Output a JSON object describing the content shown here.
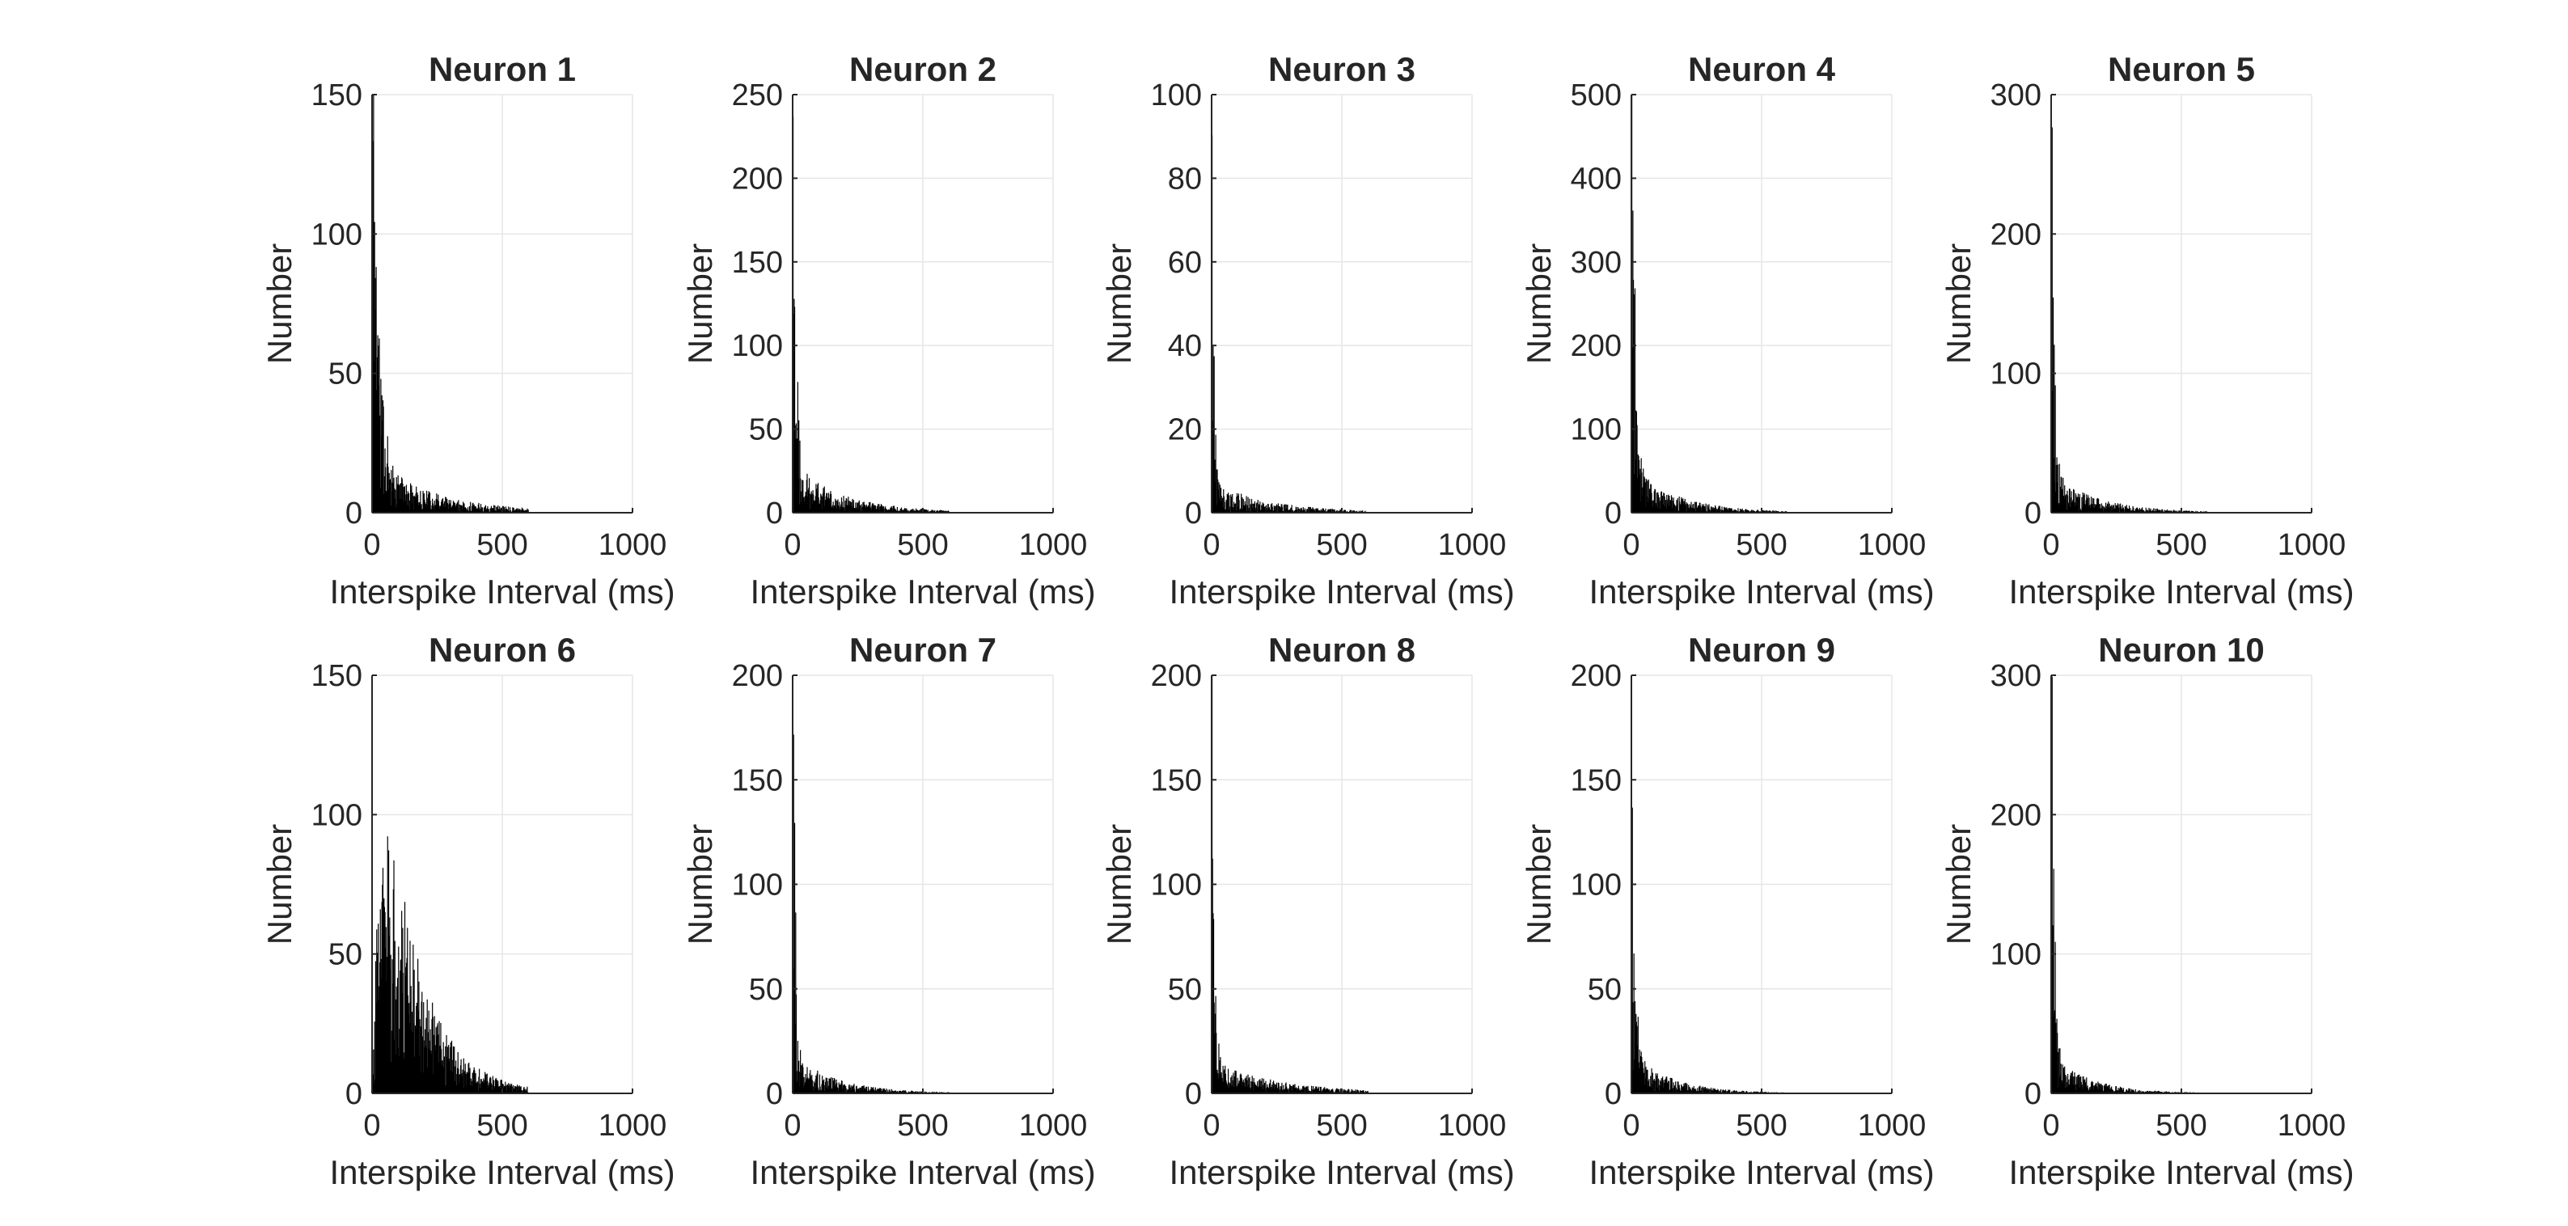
{
  "figure": {
    "background": "#ffffff",
    "bar_color": "#000000",
    "grid_color": "#e6e6e6",
    "axis_color": "#262626"
  },
  "chart_data": [
    {
      "type": "bar",
      "title": "Neuron 1",
      "xlabel": "Interspike Interval (ms)",
      "ylabel": "Number",
      "xlim": [
        0,
        1000
      ],
      "ylim": [
        0,
        150
      ],
      "xticks": [
        0,
        500,
        1000
      ],
      "yticks": [
        0,
        50,
        100,
        150
      ],
      "grid": true,
      "bin_width": 2,
      "x_extent": 600,
      "shape": {
        "peak": 123,
        "decay": 22,
        "tail": 12,
        "tail_decay": 250,
        "rise": 0,
        "noise": 0.55,
        "seed": 11
      }
    },
    {
      "type": "bar",
      "title": "Neuron 2",
      "xlabel": "Interspike Interval (ms)",
      "ylabel": "Number",
      "xlim": [
        0,
        1000
      ],
      "ylim": [
        0,
        250
      ],
      "xticks": [
        0,
        500,
        1000
      ],
      "yticks": [
        0,
        50,
        100,
        150,
        200,
        250
      ],
      "grid": true,
      "bin_width": 2,
      "x_extent": 600,
      "shape": {
        "peak": 205,
        "decay": 12,
        "tail": 18,
        "tail_decay": 200,
        "rise": 0,
        "noise": 0.6,
        "seed": 22
      }
    },
    {
      "type": "bar",
      "title": "Neuron 3",
      "xlabel": "Interspike Interval (ms)",
      "ylabel": "Number",
      "xlim": [
        0,
        1000
      ],
      "ylim": [
        0,
        100
      ],
      "xticks": [
        0,
        500,
        1000
      ],
      "yticks": [
        0,
        20,
        40,
        60,
        80,
        100
      ],
      "grid": true,
      "bin_width": 2,
      "x_extent": 600,
      "shape": {
        "peak": 93,
        "decay": 6,
        "tail": 4,
        "tail_decay": 220,
        "rise": 0,
        "noise": 0.9,
        "seed": 33
      }
    },
    {
      "type": "bar",
      "title": "Neuron 4",
      "xlabel": "Interspike Interval (ms)",
      "ylabel": "Number",
      "xlim": [
        0,
        1000
      ],
      "ylim": [
        0,
        500
      ],
      "xticks": [
        0,
        500,
        1000
      ],
      "yticks": [
        0,
        100,
        200,
        300,
        400,
        500
      ],
      "grid": true,
      "bin_width": 2,
      "x_extent": 600,
      "shape": {
        "peak": 425,
        "decay": 12,
        "tail": 35,
        "tail_decay": 180,
        "rise": 0,
        "noise": 0.55,
        "seed": 44
      }
    },
    {
      "type": "bar",
      "title": "Neuron 5",
      "xlabel": "Interspike Interval (ms)",
      "ylabel": "Number",
      "xlim": [
        0,
        1000
      ],
      "ylim": [
        0,
        300
      ],
      "xticks": [
        0,
        500,
        1000
      ],
      "yticks": [
        0,
        100,
        200,
        300
      ],
      "grid": true,
      "bin_width": 2,
      "x_extent": 600,
      "shape": {
        "peak": 275,
        "decay": 10,
        "tail": 18,
        "tail_decay": 180,
        "rise": 0,
        "noise": 0.6,
        "seed": 55
      }
    },
    {
      "type": "bar",
      "title": "Neuron 6",
      "xlabel": "Interspike Interval (ms)",
      "ylabel": "Number",
      "xlim": [
        0,
        1000
      ],
      "ylim": [
        0,
        150
      ],
      "xticks": [
        0,
        500,
        1000
      ],
      "yticks": [
        0,
        50,
        100,
        150
      ],
      "grid": true,
      "bin_width": 2,
      "x_extent": 600,
      "shape": {
        "peak": 95,
        "decay": 140,
        "tail": 0,
        "tail_decay": 1,
        "rise": 30,
        "noise": 0.45,
        "seed": 66
      }
    },
    {
      "type": "bar",
      "title": "Neuron 7",
      "xlabel": "Interspike Interval (ms)",
      "ylabel": "Number",
      "xlim": [
        0,
        1000
      ],
      "ylim": [
        0,
        200
      ],
      "xticks": [
        0,
        500,
        1000
      ],
      "yticks": [
        0,
        50,
        100,
        150,
        200
      ],
      "grid": true,
      "bin_width": 2,
      "x_extent": 600,
      "shape": {
        "peak": 185,
        "decay": 8,
        "tail": 12,
        "tail_decay": 170,
        "rise": 0,
        "noise": 0.6,
        "seed": 77
      }
    },
    {
      "type": "bar",
      "title": "Neuron 8",
      "xlabel": "Interspike Interval (ms)",
      "ylabel": "Number",
      "xlim": [
        0,
        1000
      ],
      "ylim": [
        0,
        200
      ],
      "xticks": [
        0,
        500,
        1000
      ],
      "yticks": [
        0,
        50,
        100,
        150,
        200
      ],
      "grid": true,
      "bin_width": 2,
      "x_extent": 600,
      "shape": {
        "peak": 172,
        "decay": 8,
        "tail": 10,
        "tail_decay": 260,
        "rise": 0,
        "noise": 0.6,
        "seed": 88
      }
    },
    {
      "type": "bar",
      "title": "Neuron 9",
      "xlabel": "Interspike Interval (ms)",
      "ylabel": "Number",
      "xlim": [
        0,
        1000
      ],
      "ylim": [
        0,
        200
      ],
      "xticks": [
        0,
        500,
        1000
      ],
      "yticks": [
        0,
        50,
        100,
        150,
        200
      ],
      "grid": true,
      "bin_width": 2,
      "x_extent": 600,
      "shape": {
        "peak": 160,
        "decay": 10,
        "tail": 12,
        "tail_decay": 160,
        "rise": 0,
        "noise": 0.6,
        "seed": 99
      }
    },
    {
      "type": "bar",
      "title": "Neuron 10",
      "xlabel": "Interspike Interval (ms)",
      "ylabel": "Number",
      "xlim": [
        0,
        1000
      ],
      "ylim": [
        0,
        300
      ],
      "xticks": [
        0,
        500,
        1000
      ],
      "yticks": [
        0,
        100,
        200,
        300
      ],
      "grid": true,
      "bin_width": 2,
      "x_extent": 600,
      "shape": {
        "peak": 275,
        "decay": 9,
        "tail": 18,
        "tail_decay": 150,
        "rise": 0,
        "noise": 0.6,
        "seed": 110
      }
    }
  ]
}
